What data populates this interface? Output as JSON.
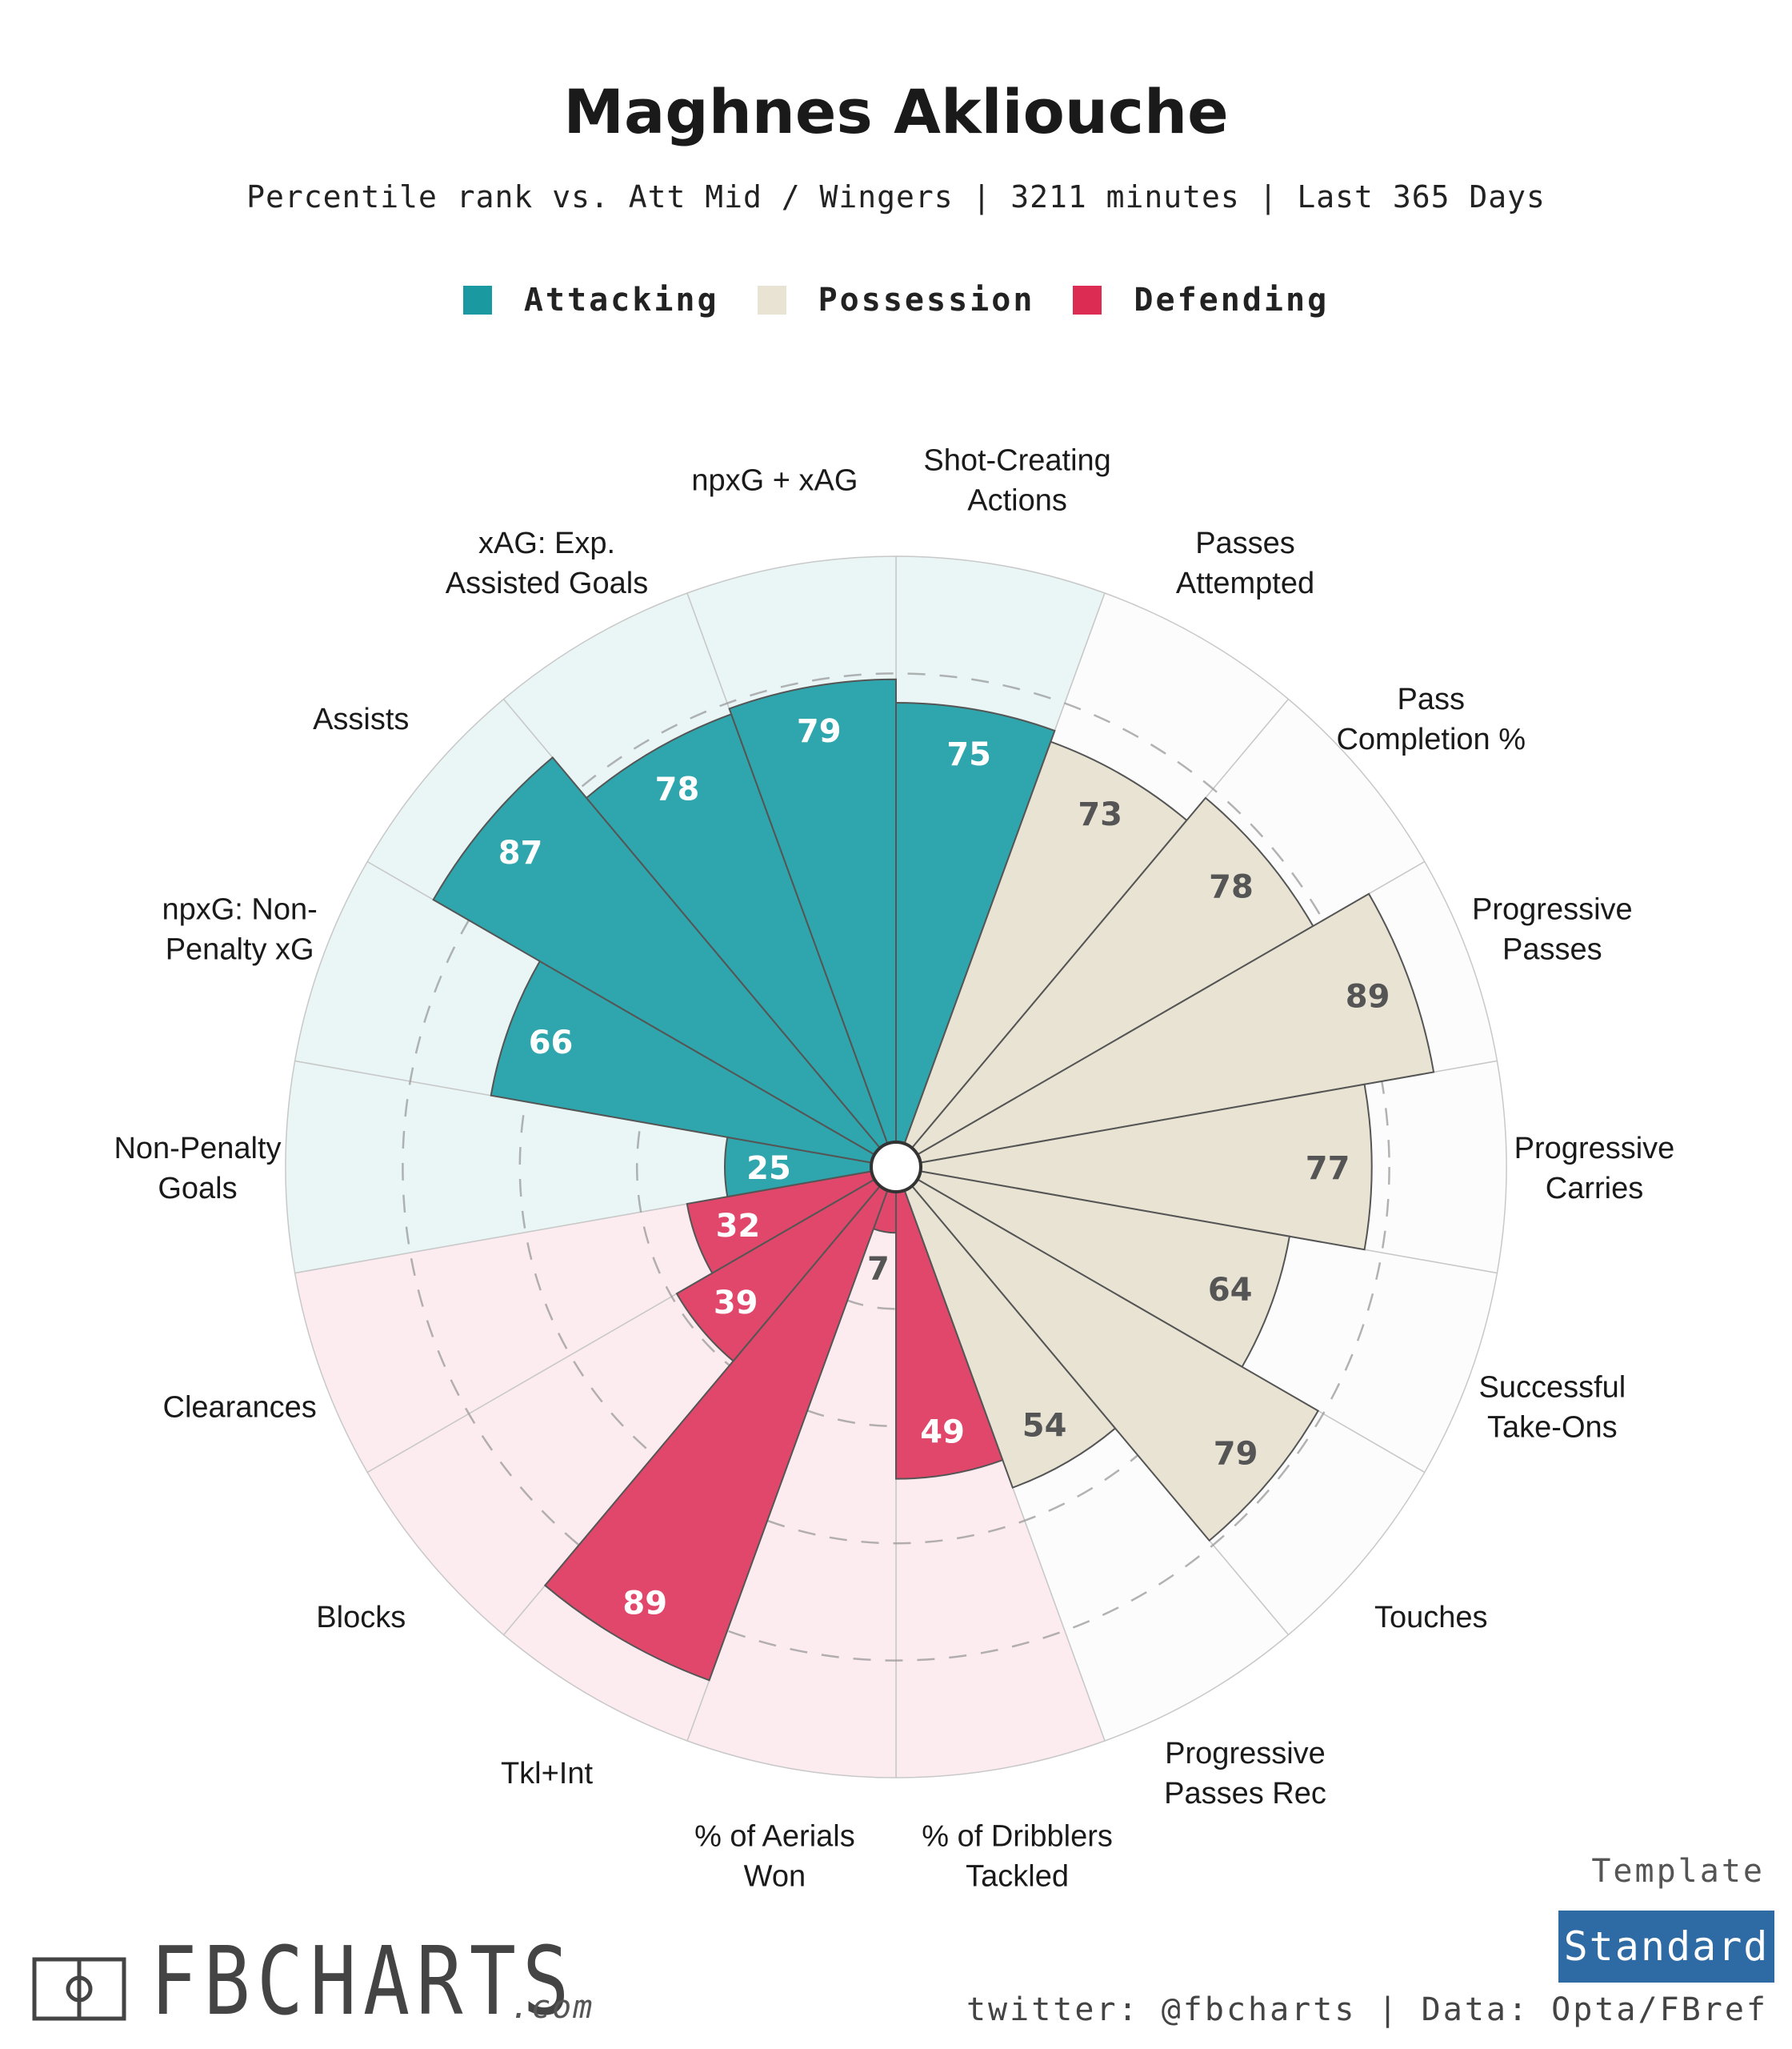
{
  "header": {
    "title": "Maghnes Akliouche",
    "subtitle": "Percentile rank vs. Att Mid / Wingers | 3211 minutes | Last 365 Days"
  },
  "legend": [
    {
      "label": "Attacking",
      "color": "#1a9aa0"
    },
    {
      "label": "Possession",
      "color": "#e8e3d3"
    },
    {
      "label": "Defending",
      "color": "#dd2c54"
    }
  ],
  "chart_data": {
    "type": "polar-bar",
    "title": "Maghnes Akliouche",
    "rmax": 100,
    "rings": [
      20,
      40,
      60,
      80
    ],
    "categories": [
      {
        "key": "Attacking",
        "bar": "#2fa6ad",
        "bg": "#e9f6f5",
        "text": "#ffffff"
      },
      {
        "key": "Possession",
        "bar": "#e8e3d3",
        "bg": "#fcfcfc",
        "text": "#555555"
      },
      {
        "key": "Defending",
        "bar": "#e0476a",
        "bg": "#fcecf0",
        "text": "#ffffff"
      }
    ],
    "metrics": [
      {
        "label": "Shot-Creating\nActions",
        "value": 75,
        "category": "Attacking"
      },
      {
        "label": "Passes\nAttempted",
        "value": 73,
        "category": "Possession"
      },
      {
        "label": "Pass\nCompletion %",
        "value": 78,
        "category": "Possession"
      },
      {
        "label": "Progressive\nPasses",
        "value": 89,
        "category": "Possession"
      },
      {
        "label": "Progressive\nCarries",
        "value": 77,
        "category": "Possession"
      },
      {
        "label": "Successful\nTake-Ons",
        "value": 64,
        "category": "Possession"
      },
      {
        "label": "Touches",
        "value": 79,
        "category": "Possession"
      },
      {
        "label": "Progressive\nPasses Rec",
        "value": 54,
        "category": "Possession"
      },
      {
        "label": "% of Dribblers\nTackled",
        "value": 49,
        "category": "Defending"
      },
      {
        "label": "% of Aerials\nWon",
        "value": 7,
        "category": "Defending"
      },
      {
        "label": "Tkl+Int",
        "value": 89,
        "category": "Defending"
      },
      {
        "label": "Blocks",
        "value": 39,
        "category": "Defending"
      },
      {
        "label": "Clearances",
        "value": 32,
        "category": "Defending"
      },
      {
        "label": "Non-Penalty\nGoals",
        "value": 25,
        "category": "Attacking"
      },
      {
        "label": "npxG: Non-\nPenalty xG",
        "value": 66,
        "category": "Attacking"
      },
      {
        "label": "Assists",
        "value": 87,
        "category": "Attacking"
      },
      {
        "label": "xAG: Exp.\nAssisted Goals",
        "value": 78,
        "category": "Attacking"
      },
      {
        "label": "npxG + xAG",
        "value": 79,
        "category": "Attacking"
      }
    ]
  },
  "footer": {
    "template_label": "Template",
    "template_value": "Standard",
    "credits": "twitter: @fbcharts | Data: Opta/FBref",
    "logo_text": "FBCHARTS",
    "logo_suffix": ".com"
  }
}
